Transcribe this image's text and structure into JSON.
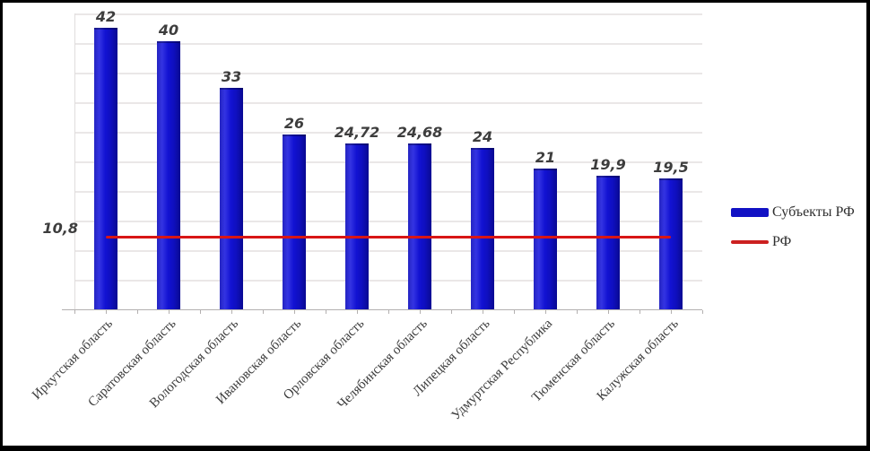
{
  "chart_data": {
    "type": "bar",
    "title": "",
    "xlabel": "",
    "ylabel": "",
    "categories": [
      "Иркутская область",
      "Саратовская область",
      "Вологодская область",
      "Ивановская область",
      "Орловская область",
      "Челябинская область",
      "Липецкая область",
      "Удмуртская Республика",
      "Тюменская область",
      "Калужская область"
    ],
    "series": [
      {
        "name": "Субъекты РФ",
        "type": "bar",
        "color": "#1111c9",
        "values": [
          42,
          40,
          33,
          26,
          24.72,
          24.68,
          24,
          21,
          19.9,
          19.5
        ],
        "value_labels": [
          "42",
          "40",
          "33",
          "26",
          "24,72",
          "24,68",
          "24",
          "21",
          "19,9",
          "19,5"
        ]
      },
      {
        "name": "РФ",
        "type": "line",
        "color": "#d81616",
        "values": [
          10.8,
          10.8,
          10.8,
          10.8,
          10.8,
          10.8,
          10.8,
          10.8,
          10.8,
          10.8
        ]
      }
    ],
    "reference_line": {
      "value": 10.8,
      "label": "10,8",
      "color": "#d81616"
    },
    "ylim": [
      0,
      44.1
    ],
    "grid": true,
    "gridline_color": "#eae7e7",
    "legend_position": "right"
  },
  "legend": {
    "items": [
      {
        "label": "Субъекты РФ",
        "swatch": "thick-bar",
        "color": "#1111c4"
      },
      {
        "label": "РФ",
        "swatch": "line",
        "color": "#cc2020"
      }
    ]
  }
}
